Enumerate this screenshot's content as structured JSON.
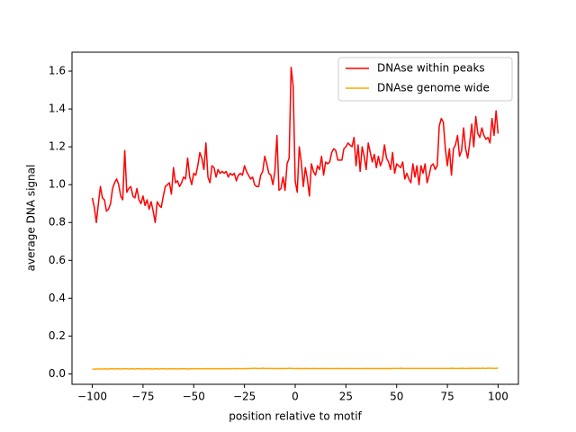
{
  "chart_data": {
    "type": "line",
    "xlabel": "position relative to motif",
    "ylabel": "average DNA signal",
    "x": [
      -100,
      -99,
      -98,
      -97,
      -96,
      -95,
      -94,
      -93,
      -92,
      -91,
      -90,
      -89,
      -88,
      -87,
      -86,
      -85,
      -84,
      -83,
      -82,
      -81,
      -80,
      -79,
      -78,
      -77,
      -76,
      -75,
      -74,
      -73,
      -72,
      -71,
      -70,
      -69,
      -68,
      -67,
      -66,
      -65,
      -64,
      -63,
      -62,
      -61,
      -60,
      -59,
      -58,
      -57,
      -56,
      -55,
      -54,
      -53,
      -52,
      -51,
      -50,
      -49,
      -48,
      -47,
      -46,
      -45,
      -44,
      -43,
      -42,
      -41,
      -40,
      -39,
      -38,
      -37,
      -36,
      -35,
      -34,
      -33,
      -32,
      -31,
      -30,
      -29,
      -28,
      -27,
      -26,
      -25,
      -24,
      -23,
      -22,
      -21,
      -20,
      -19,
      -18,
      -17,
      -16,
      -15,
      -14,
      -13,
      -12,
      -11,
      -10,
      -9,
      -8,
      -7,
      -6,
      -5,
      -4,
      -3,
      -2,
      -1,
      0,
      1,
      2,
      3,
      4,
      5,
      6,
      7,
      8,
      9,
      10,
      11,
      12,
      13,
      14,
      15,
      16,
      17,
      18,
      19,
      20,
      21,
      22,
      23,
      24,
      25,
      26,
      27,
      28,
      29,
      30,
      31,
      32,
      33,
      34,
      35,
      36,
      37,
      38,
      39,
      40,
      41,
      42,
      43,
      44,
      45,
      46,
      47,
      48,
      49,
      50,
      51,
      52,
      53,
      54,
      55,
      56,
      57,
      58,
      59,
      60,
      61,
      62,
      63,
      64,
      65,
      66,
      67,
      68,
      69,
      70,
      71,
      72,
      73,
      74,
      75,
      76,
      77,
      78,
      79,
      80,
      81,
      82,
      83,
      84,
      85,
      86,
      87,
      88,
      89,
      90,
      91,
      92,
      93,
      94,
      95,
      96,
      97,
      98,
      99,
      100
    ],
    "series": [
      {
        "name": "DNAse within peaks",
        "color": "#ff0000",
        "values": [
          0.93,
          0.88,
          0.8,
          0.9,
          0.99,
          0.93,
          0.92,
          0.86,
          0.87,
          0.9,
          0.98,
          1.01,
          1.03,
          1.0,
          0.94,
          0.92,
          1.18,
          0.96,
          0.98,
          0.99,
          0.94,
          0.93,
          0.98,
          0.92,
          0.9,
          0.94,
          0.89,
          0.92,
          0.87,
          0.91,
          0.86,
          0.8,
          0.91,
          0.89,
          0.88,
          0.94,
          0.99,
          1.0,
          1.01,
          0.95,
          1.09,
          1.01,
          1.02,
          0.99,
          1.01,
          1.04,
          1.03,
          1.14,
          1.04,
          1.0,
          1.06,
          1.05,
          1.1,
          1.17,
          1.14,
          1.08,
          1.22,
          1.04,
          1.01,
          1.1,
          1.09,
          1.04,
          1.08,
          1.06,
          1.07,
          1.06,
          1.07,
          1.04,
          1.06,
          1.05,
          1.06,
          1.02,
          1.05,
          1.06,
          1.05,
          1.1,
          1.07,
          1.05,
          1.03,
          1.04,
          1.0,
          0.99,
          0.99,
          1.05,
          1.07,
          1.15,
          1.11,
          1.06,
          1.05,
          1.0,
          1.07,
          1.26,
          0.97,
          0.98,
          1.04,
          0.97,
          1.11,
          1.14,
          1.62,
          1.52,
          1.02,
          0.96,
          1.2,
          1.12,
          0.99,
          1.09,
          1.03,
          0.94,
          1.11,
          1.07,
          1.05,
          1.1,
          1.08,
          1.15,
          1.05,
          1.12,
          1.11,
          1.12,
          1.17,
          1.19,
          1.18,
          1.13,
          1.13,
          1.13,
          1.19,
          1.2,
          1.22,
          1.21,
          1.2,
          1.25,
          1.1,
          1.21,
          1.07,
          1.2,
          1.15,
          1.08,
          1.22,
          1.17,
          1.12,
          1.16,
          1.09,
          1.15,
          1.1,
          1.13,
          1.21,
          1.14,
          1.12,
          1.08,
          1.17,
          1.06,
          1.11,
          1.1,
          1.09,
          1.12,
          1.03,
          1.06,
          1.03,
          1.01,
          1.11,
          1.04,
          1.1,
          1.0,
          1.1,
          1.06,
          1.11,
          1.01,
          1.05,
          1.1,
          1.11,
          1.08,
          1.1,
          1.31,
          1.35,
          1.33,
          1.19,
          1.1,
          1.19,
          1.05,
          1.19,
          1.21,
          1.26,
          1.15,
          1.18,
          1.3,
          1.19,
          1.14,
          1.22,
          1.32,
          1.2,
          1.36,
          1.27,
          1.25,
          1.3,
          1.26,
          1.24,
          1.25,
          1.22,
          1.35,
          1.26,
          1.39,
          1.27
        ]
      },
      {
        "name": "DNAse genome wide",
        "color": "#ffa500",
        "values": [
          0.025,
          0.025,
          0.026,
          0.026,
          0.026,
          0.026,
          0.027,
          0.026,
          0.026,
          0.027,
          0.027,
          0.026,
          0.027,
          0.027,
          0.026,
          0.027,
          0.027,
          0.027,
          0.026,
          0.027,
          0.027,
          0.026,
          0.027,
          0.027,
          0.027,
          0.026,
          0.027,
          0.027,
          0.026,
          0.027,
          0.026,
          0.027,
          0.027,
          0.026,
          0.027,
          0.027,
          0.027,
          0.026,
          0.027,
          0.027,
          0.027,
          0.027,
          0.026,
          0.027,
          0.027,
          0.027,
          0.027,
          0.026,
          0.027,
          0.027,
          0.027,
          0.027,
          0.028,
          0.027,
          0.027,
          0.027,
          0.028,
          0.027,
          0.027,
          0.028,
          0.027,
          0.027,
          0.028,
          0.027,
          0.028,
          0.027,
          0.027,
          0.028,
          0.027,
          0.028,
          0.028,
          0.027,
          0.028,
          0.028,
          0.027,
          0.028,
          0.028,
          0.028,
          0.029,
          0.029,
          0.03,
          0.029,
          0.028,
          0.029,
          0.03,
          0.029,
          0.028,
          0.029,
          0.029,
          0.028,
          0.028,
          0.029,
          0.028,
          0.028,
          0.029,
          0.028,
          0.029,
          0.03,
          0.029,
          0.029,
          0.028,
          0.029,
          0.028,
          0.028,
          0.028,
          0.029,
          0.028,
          0.028,
          0.028,
          0.029,
          0.028,
          0.028,
          0.028,
          0.028,
          0.029,
          0.028,
          0.028,
          0.028,
          0.028,
          0.028,
          0.028,
          0.029,
          0.028,
          0.028,
          0.028,
          0.028,
          0.029,
          0.028,
          0.028,
          0.028,
          0.028,
          0.028,
          0.028,
          0.028,
          0.028,
          0.029,
          0.028,
          0.028,
          0.028,
          0.029,
          0.028,
          0.028,
          0.029,
          0.028,
          0.028,
          0.028,
          0.029,
          0.028,
          0.029,
          0.029,
          0.029,
          0.029,
          0.03,
          0.029,
          0.029,
          0.029,
          0.029,
          0.029,
          0.029,
          0.029,
          0.029,
          0.029,
          0.029,
          0.029,
          0.029,
          0.029,
          0.029,
          0.029,
          0.029,
          0.029,
          0.029,
          0.029,
          0.029,
          0.029,
          0.029,
          0.029,
          0.029,
          0.03,
          0.029,
          0.029,
          0.029,
          0.029,
          0.03,
          0.029,
          0.029,
          0.029,
          0.03,
          0.029,
          0.03,
          0.029,
          0.03,
          0.029,
          0.03,
          0.03,
          0.029,
          0.03,
          0.03,
          0.03,
          0.029,
          0.03,
          0.03
        ]
      }
    ],
    "xlim": [
      -110,
      110
    ],
    "xticks": [
      {
        "value": -100,
        "label": "−100"
      },
      {
        "value": -75,
        "label": "−75"
      },
      {
        "value": -50,
        "label": "−50"
      },
      {
        "value": -25,
        "label": "−25"
      },
      0,
      25,
      50,
      75,
      100
    ],
    "ylim": [
      -0.055,
      1.7
    ],
    "yticks": [
      {
        "value": 0,
        "label": "0.0"
      },
      {
        "value": 0.2,
        "label": "0.2"
      },
      {
        "value": 0.4,
        "label": "0.4"
      },
      {
        "value": 0.6,
        "label": "0.6"
      },
      {
        "value": 0.8,
        "label": "0.8"
      },
      {
        "value": 1,
        "label": "1.0"
      },
      {
        "value": 1.2,
        "label": "1.2"
      },
      {
        "value": 1.4,
        "label": "1.4"
      },
      {
        "value": 1.6,
        "label": "1.6"
      }
    ],
    "grid": false,
    "legend": "upper right"
  }
}
